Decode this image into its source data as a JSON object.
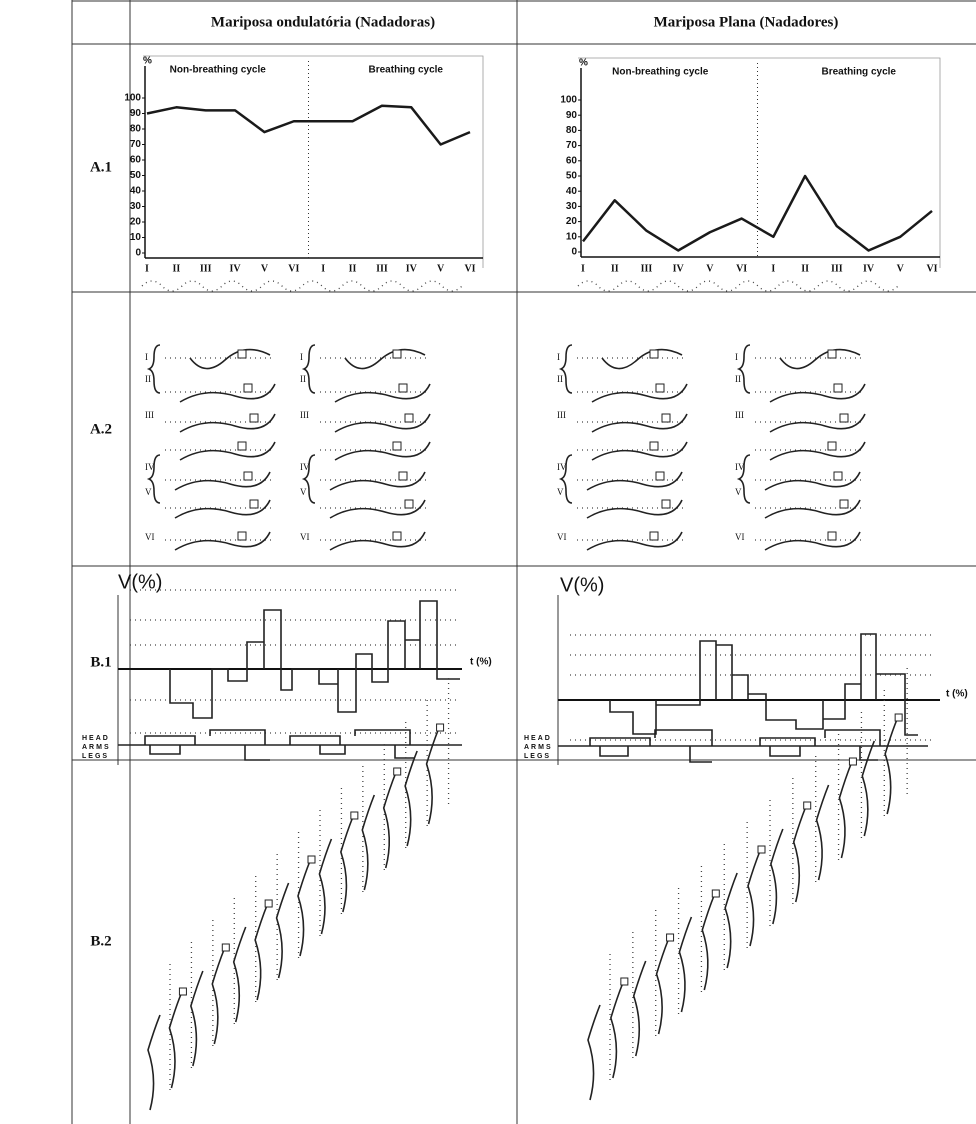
{
  "table": {
    "header": [
      "Mariposa ondulatória (Nadadoras)",
      "Mariposa Plana (Nadadores)"
    ],
    "row_labels": [
      "A.1",
      "A.2",
      "B.1",
      "B.2"
    ]
  },
  "chart_data": [
    {
      "type": "line",
      "y_label": "%",
      "annotations": [
        "Non-breathing cycle",
        "Breathing cycle"
      ],
      "categories": [
        "I",
        "II",
        "III",
        "IV",
        "V",
        "VI",
        "I",
        "II",
        "III",
        "IV",
        "V",
        "VI"
      ],
      "values": [
        90,
        94,
        92,
        92,
        78,
        85,
        85,
        85,
        95,
        94,
        70,
        78
      ],
      "color": "#1a1a1a",
      "ylim": [
        0,
        100
      ],
      "yticks": [
        0,
        10,
        20,
        30,
        40,
        50,
        60,
        70,
        80,
        90,
        100
      ]
    },
    {
      "type": "line",
      "y_label": "%",
      "annotations": [
        "Non-breathing cycle",
        "Breathing cycle"
      ],
      "categories": [
        "I",
        "II",
        "III",
        "IV",
        "V",
        "VI",
        "I",
        "II",
        "III",
        "IV",
        "V",
        "VI"
      ],
      "values": [
        7,
        34,
        14,
        1,
        13,
        22,
        10,
        50,
        17,
        1,
        10,
        27
      ],
      "color": "#1a1a1a",
      "ylim": [
        0,
        100
      ],
      "yticks": [
        0,
        10,
        20,
        30,
        40,
        50,
        60,
        70,
        80,
        90,
        100
      ]
    }
  ],
  "a2_labels": [
    "I",
    "II",
    "III",
    "IV",
    "V",
    "VI"
  ],
  "b1": {
    "y_label": "V(%)",
    "x_label": "t (%)",
    "tracks": [
      "HEAD",
      "ARMS",
      "LEGS"
    ]
  }
}
